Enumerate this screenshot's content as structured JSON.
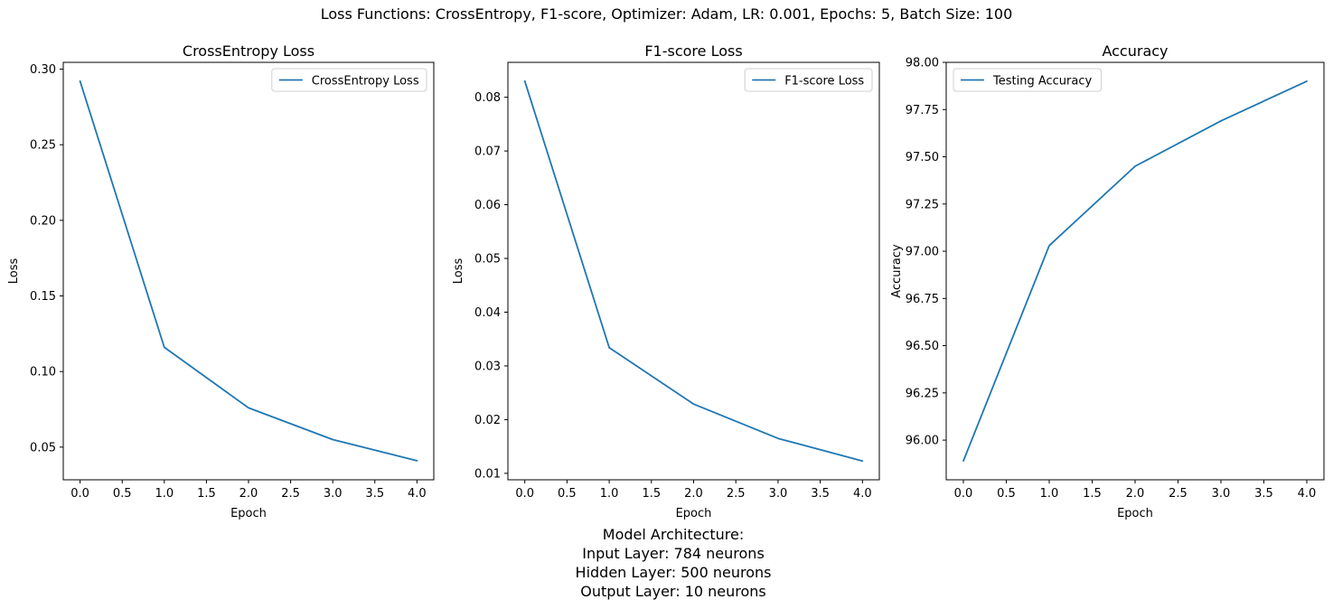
{
  "suptitle": "Loss Functions: CrossEntropy, F1-score, Optimizer: Adam, LR: 0.001, Epochs: 5, Batch Size: 100",
  "architecture": {
    "heading": "Model Architecture:",
    "input": "Input Layer: 784 neurons",
    "hidden": "Hidden Layer: 500 neurons",
    "output": "Output Layer: 10 neurons"
  },
  "line_color": "#1f77b4",
  "chart_data": [
    {
      "type": "line",
      "title": "CrossEntropy Loss",
      "xlabel": "Epoch",
      "ylabel": "Loss",
      "x": [
        0,
        1,
        2,
        3,
        4
      ],
      "series": [
        {
          "name": "CrossEntropy Loss",
          "values": [
            0.292,
            0.116,
            0.076,
            0.055,
            0.041
          ]
        }
      ],
      "xlim": [
        -0.2,
        4.2
      ],
      "ylim": [
        0.0284,
        0.3045
      ],
      "xticks": [
        0,
        0.5,
        1,
        1.5,
        2,
        2.5,
        3,
        3.5,
        4
      ],
      "xtick_labels": [
        "0.0",
        "0.5",
        "1.0",
        "1.5",
        "2.0",
        "2.5",
        "3.0",
        "3.5",
        "4.0"
      ],
      "yticks": [
        0.05,
        0.1,
        0.15,
        0.2,
        0.25,
        0.3
      ],
      "ytick_labels": [
        "0.05",
        "0.10",
        "0.15",
        "0.20",
        "0.25",
        "0.30"
      ],
      "legend": "upper right",
      "grid": false
    },
    {
      "type": "line",
      "title": "F1-score Loss",
      "xlabel": "Epoch",
      "ylabel": "Loss",
      "x": [
        0,
        1,
        2,
        3,
        4
      ],
      "series": [
        {
          "name": "F1-score Loss",
          "values": [
            0.083,
            0.0334,
            0.0229,
            0.0165,
            0.0123
          ]
        }
      ],
      "xlim": [
        -0.2,
        4.2
      ],
      "ylim": [
        0.0088,
        0.0865
      ],
      "xticks": [
        0,
        0.5,
        1,
        1.5,
        2,
        2.5,
        3,
        3.5,
        4
      ],
      "xtick_labels": [
        "0.0",
        "0.5",
        "1.0",
        "1.5",
        "2.0",
        "2.5",
        "3.0",
        "3.5",
        "4.0"
      ],
      "yticks": [
        0.01,
        0.02,
        0.03,
        0.04,
        0.05,
        0.06,
        0.07,
        0.08
      ],
      "ytick_labels": [
        "0.01",
        "0.02",
        "0.03",
        "0.04",
        "0.05",
        "0.06",
        "0.07",
        "0.08"
      ],
      "legend": "upper right",
      "grid": false
    },
    {
      "type": "line",
      "title": "Accuracy",
      "xlabel": "Epoch",
      "ylabel": "Accuracy",
      "x": [
        0,
        1,
        2,
        3,
        4
      ],
      "series": [
        {
          "name": "Testing Accuracy",
          "values": [
            95.89,
            97.03,
            97.45,
            97.69,
            97.9
          ]
        }
      ],
      "xlim": [
        -0.2,
        4.2
      ],
      "ylim": [
        95.79,
        98.0
      ],
      "xticks": [
        0,
        0.5,
        1,
        1.5,
        2,
        2.5,
        3,
        3.5,
        4
      ],
      "xtick_labels": [
        "0.0",
        "0.5",
        "1.0",
        "1.5",
        "2.0",
        "2.5",
        "3.0",
        "3.5",
        "4.0"
      ],
      "yticks": [
        96.0,
        96.25,
        96.5,
        96.75,
        97.0,
        97.25,
        97.5,
        97.75,
        98.0
      ],
      "ytick_labels": [
        "96.00",
        "96.25",
        "96.50",
        "96.75",
        "97.00",
        "97.25",
        "97.50",
        "97.75",
        "98.00"
      ],
      "legend": "upper left",
      "grid": false
    }
  ]
}
